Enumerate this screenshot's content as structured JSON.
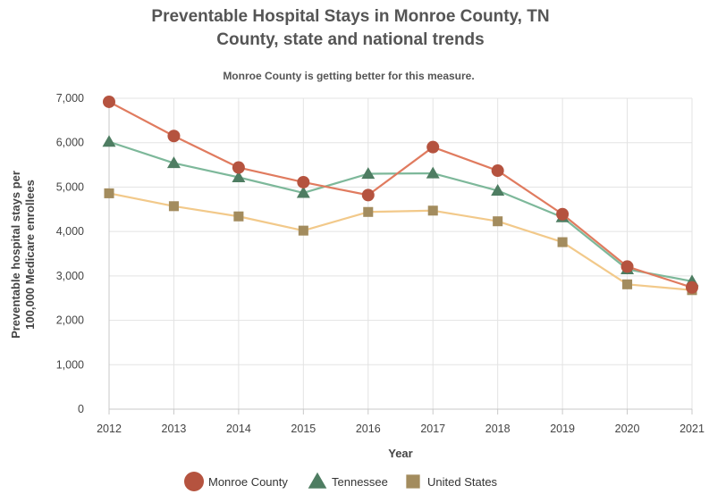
{
  "chart_data": {
    "type": "line",
    "title_lines": [
      "Preventable Hospital Stays in Monroe County, TN",
      "County, state and national trends"
    ],
    "subtitle": "Monroe County is getting better for this measure.",
    "xlabel": "Year",
    "ylabel_lines": [
      "Preventable hospital stays per",
      "100,000 Medicare enrollees"
    ],
    "x": [
      "2012",
      "2013",
      "2014",
      "2015",
      "2016",
      "2017",
      "2018",
      "2019",
      "2020",
      "2021"
    ],
    "ylim": [
      0,
      7000
    ],
    "yticks": [
      0,
      1000,
      2000,
      3000,
      4000,
      5000,
      6000,
      7000
    ],
    "ytick_labels": [
      "0",
      "1,000",
      "2,000",
      "3,000",
      "4,000",
      "5,000",
      "6,000",
      "7,000"
    ],
    "grid": true,
    "legend_position": "bottom-center",
    "series": [
      {
        "name": "Monroe County",
        "marker": "circle",
        "line_color": "#E07B5F",
        "marker_color": "#B5533F",
        "values": [
          6920,
          6150,
          5440,
          5110,
          4820,
          5900,
          5370,
          4390,
          3210,
          2740
        ]
      },
      {
        "name": "Tennessee",
        "marker": "triangle",
        "line_color": "#7DB89A",
        "marker_color": "#4E7D62",
        "values": [
          6020,
          5540,
          5220,
          4870,
          5300,
          5310,
          4920,
          4320,
          3150,
          2880
        ]
      },
      {
        "name": "United States",
        "marker": "square",
        "line_color": "#F2C98A",
        "marker_color": "#A38C5E",
        "values": [
          4860,
          4570,
          4340,
          4020,
          4440,
          4470,
          4230,
          3760,
          2810,
          2680
        ]
      }
    ]
  }
}
